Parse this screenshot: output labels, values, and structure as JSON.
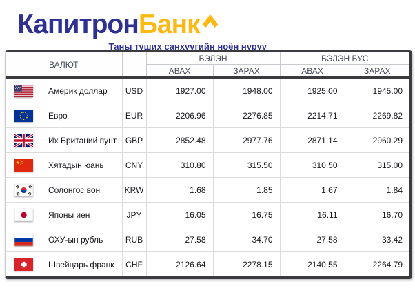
{
  "brand": {
    "name_part1": "Капитрон",
    "name_part2": "Банк",
    "tagline": "Таны түших санхүүгийн ноён нуруу",
    "color_primary": "#2e3192",
    "color_accent": "#fdb913"
  },
  "table": {
    "headers": {
      "currency": "ВАЛЮТ",
      "cash": "БЭЛЭН",
      "noncash": "БЭЛЭН БУС",
      "buy": "АВАХ",
      "sell": "ЗАРАХ"
    },
    "border_color": "#3a3a40",
    "rows": [
      {
        "flag": "us",
        "name": "Америк доллар",
        "code": "USD",
        "cash_buy": "1927.00",
        "cash_sell": "1948.00",
        "noncash_buy": "1925.00",
        "noncash_sell": "1945.00"
      },
      {
        "flag": "eu",
        "name": "Евро",
        "code": "EUR",
        "cash_buy": "2206.96",
        "cash_sell": "2276.85",
        "noncash_buy": "2214.71",
        "noncash_sell": "2269.82"
      },
      {
        "flag": "gb",
        "name": "Их Британий пунт",
        "code": "GBP",
        "cash_buy": "2852.48",
        "cash_sell": "2977.76",
        "noncash_buy": "2871.14",
        "noncash_sell": "2960.29"
      },
      {
        "flag": "cn",
        "name": "Хятадын юань",
        "code": "CNY",
        "cash_buy": "310.80",
        "cash_sell": "315.50",
        "noncash_buy": "310.50",
        "noncash_sell": "315.00"
      },
      {
        "flag": "kr",
        "name": "Солонгос вон",
        "code": "KRW",
        "cash_buy": "1.68",
        "cash_sell": "1.85",
        "noncash_buy": "1.67",
        "noncash_sell": "1.84"
      },
      {
        "flag": "jp",
        "name": "Японы иен",
        "code": "JPY",
        "cash_buy": "16.05",
        "cash_sell": "16.75",
        "noncash_buy": "16.11",
        "noncash_sell": "16.70"
      },
      {
        "flag": "ru",
        "name": "ОХУ-ын рубль",
        "code": "RUB",
        "cash_buy": "27.58",
        "cash_sell": "34.70",
        "noncash_buy": "27.58",
        "noncash_sell": "33.42"
      },
      {
        "flag": "ch",
        "name": "Швейцарь франк",
        "code": "CHF",
        "cash_buy": "2126.64",
        "cash_sell": "2278.15",
        "noncash_buy": "2140.55",
        "noncash_sell": "2264.79"
      }
    ]
  }
}
